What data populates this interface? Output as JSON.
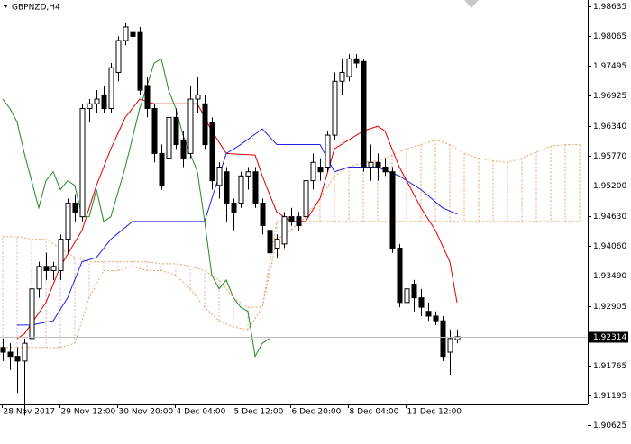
{
  "chart_data": {
    "type": "candlestick",
    "title": "GBPNZD,H4",
    "ylim": [
      1.90625,
      1.98635
    ],
    "yticks": [
      1.98635,
      1.98065,
      1.97495,
      1.96925,
      {
        "value": 1.9634,
        "label": "1.96340"
      },
      {
        "value": 1.9577,
        "label": "1.95770"
      },
      {
        "value": 1.952,
        "label": "1.95200"
      },
      {
        "value": 1.9463,
        "label": "1.94630"
      },
      {
        "value": 1.9406,
        "label": "1.94060"
      },
      {
        "value": 1.9349,
        "label": "1.93490"
      },
      1.92905,
      1.91765,
      1.91195,
      1.90625
    ],
    "xticks": [
      {
        "value": 0,
        "label": "28 Nov 2017"
      },
      {
        "value": 8,
        "label": "29 Nov 12:00"
      },
      {
        "value": 16,
        "label": "30 Nov 20:00"
      },
      {
        "value": 24,
        "label": "4 Dec 04:00"
      },
      {
        "value": 32,
        "label": "5 Dec 12:00"
      },
      {
        "value": 40,
        "label": "6 Dec 20:00"
      },
      {
        "value": 48,
        "label": "8 Dec 04:00"
      },
      {
        "value": 56,
        "label": "11 Dec 12:00"
      }
    ],
    "last_price": 1.92314,
    "up_color": "#ffffff",
    "down_color": "#000000",
    "ohlc": [
      [
        1.9211,
        1.9228,
        1.9185,
        1.9202
      ],
      [
        1.9202,
        1.9219,
        1.9168,
        1.9194
      ],
      [
        1.9194,
        1.9211,
        1.9124,
        1.9185
      ],
      [
        1.9185,
        1.9228,
        1.9081,
        1.9219
      ],
      [
        1.9228,
        1.9332,
        1.9211,
        1.9323
      ],
      [
        1.9323,
        1.9375,
        1.9306,
        1.9366
      ],
      [
        1.9366,
        1.9392,
        1.934,
        1.9358
      ],
      [
        1.9358,
        1.9375,
        1.934,
        1.9366
      ],
      [
        1.9358,
        1.9427,
        1.934,
        1.9418
      ],
      [
        1.9418,
        1.9496,
        1.9392,
        1.9487
      ],
      [
        1.9487,
        1.9504,
        1.9452,
        1.947
      ],
      [
        1.9461,
        1.9677,
        1.9452,
        1.9668
      ],
      [
        1.9668,
        1.9686,
        1.9642,
        1.9677
      ],
      [
        1.9677,
        1.9703,
        1.966,
        1.9686
      ],
      [
        1.9694,
        1.9712,
        1.966,
        1.9668
      ],
      [
        1.9668,
        1.9755,
        1.966,
        1.9746
      ],
      [
        1.9737,
        1.9806,
        1.972,
        1.9798
      ],
      [
        1.9798,
        1.9832,
        1.9789,
        1.9824
      ],
      [
        1.9815,
        1.9832,
        1.9798,
        1.9806
      ],
      [
        1.9815,
        1.9824,
        1.9694,
        1.9703
      ],
      [
        1.9712,
        1.9729,
        1.9651,
        1.9668
      ],
      [
        1.9668,
        1.9677,
        1.9565,
        1.9582
      ],
      [
        1.9582,
        1.9599,
        1.9513,
        1.9521
      ],
      [
        1.9573,
        1.966,
        1.9556,
        1.9651
      ],
      [
        1.9651,
        1.9668,
        1.9591,
        1.9599
      ],
      [
        1.9608,
        1.9625,
        1.9556,
        1.9573
      ],
      [
        1.9582,
        1.9712,
        1.9573,
        1.9686
      ],
      [
        1.9686,
        1.9729,
        1.966,
        1.9694
      ],
      [
        1.9677,
        1.9694,
        1.9591,
        1.9599
      ],
      [
        1.9642,
        1.9651,
        1.9513,
        1.953
      ],
      [
        1.9521,
        1.9565,
        1.9496,
        1.9556
      ],
      [
        1.9547,
        1.9556,
        1.9452,
        1.9487
      ],
      [
        1.9487,
        1.9496,
        1.9435,
        1.947
      ],
      [
        1.9487,
        1.9547,
        1.9478,
        1.9539
      ],
      [
        1.9539,
        1.9556,
        1.9513,
        1.9547
      ],
      [
        1.9547,
        1.9556,
        1.9478,
        1.9487
      ],
      [
        1.9487,
        1.9496,
        1.9427,
        1.9444
      ],
      [
        1.9435,
        1.9444,
        1.9375,
        1.9392
      ],
      [
        1.9401,
        1.9427,
        1.9383,
        1.9418
      ],
      [
        1.9409,
        1.947,
        1.9401,
        1.9461
      ],
      [
        1.9461,
        1.9478,
        1.9444,
        1.9452
      ],
      [
        1.9461,
        1.947,
        1.9435,
        1.9444
      ],
      [
        1.9461,
        1.9539,
        1.9452,
        1.953
      ],
      [
        1.953,
        1.9582,
        1.9513,
        1.9565
      ],
      [
        1.9556,
        1.9573,
        1.953,
        1.9547
      ],
      [
        1.9556,
        1.9625,
        1.9547,
        1.9617
      ],
      [
        1.9617,
        1.9737,
        1.9608,
        1.972
      ],
      [
        1.972,
        1.9763,
        1.9694,
        1.9737
      ],
      [
        1.9729,
        1.9772,
        1.972,
        1.9763
      ],
      [
        1.9763,
        1.9772,
        1.9746,
        1.9755
      ],
      [
        1.9758,
        1.9763,
        1.9547,
        1.9556
      ],
      [
        1.9556,
        1.9599,
        1.953,
        1.9565
      ],
      [
        1.9565,
        1.9582,
        1.953,
        1.9556
      ],
      [
        1.9556,
        1.9573,
        1.9539,
        1.9547
      ],
      [
        1.9547,
        1.9556,
        1.9392,
        1.9401
      ],
      [
        1.9401,
        1.9409,
        1.9288,
        1.9297
      ],
      [
        1.9297,
        1.934,
        1.9288,
        1.9323
      ],
      [
        1.9332,
        1.934,
        1.928,
        1.9306
      ],
      [
        1.9306,
        1.9323,
        1.9271,
        1.9288
      ],
      [
        1.928,
        1.9297,
        1.9262,
        1.9271
      ],
      [
        1.9271,
        1.928,
        1.9254,
        1.9262
      ],
      [
        1.9262,
        1.9271,
        1.9185,
        1.9194
      ],
      [
        1.9202,
        1.9245,
        1.9159,
        1.9228
      ],
      [
        1.9226,
        1.9245,
        1.9219,
        1.92314
      ]
    ],
    "series": [
      {
        "color": "#e00000",
        "x": [
          2,
          3,
          6,
          8,
          11,
          13,
          15,
          17,
          19,
          21,
          27,
          29,
          31,
          35,
          36,
          37,
          38,
          40,
          42,
          44,
          46,
          48,
          50,
          52,
          53,
          55,
          58,
          60,
          62,
          63
        ],
        "values": [
          1.9228,
          1.9237,
          1.9297,
          1.9366,
          1.9435,
          1.9521,
          1.9591,
          1.9651,
          1.9686,
          1.9677,
          1.9677,
          1.9625,
          1.9582,
          1.9579,
          1.9539,
          1.9504,
          1.947,
          1.9452,
          1.9452,
          1.9496,
          1.9591,
          1.9608,
          1.9625,
          1.9634,
          1.9625,
          1.9556,
          1.9478,
          1.9435,
          1.9375,
          1.9297
        ]
      },
      {
        "color": "#2020e0",
        "x": [
          2,
          4,
          7,
          9,
          11,
          13,
          15,
          18,
          28,
          29,
          31,
          33,
          36,
          38,
          44,
          46,
          48,
          52,
          55,
          58,
          61,
          63
        ],
        "values": [
          1.9254,
          1.9254,
          1.9262,
          1.9306,
          1.9375,
          1.9383,
          1.9418,
          1.9452,
          1.9452,
          1.9496,
          1.9582,
          1.9599,
          1.9629,
          1.9599,
          1.9599,
          1.9547,
          1.9556,
          1.9556,
          1.9539,
          1.9513,
          1.9478,
          1.9466
        ]
      },
      {
        "color": "#1e8a1e",
        "x": [
          0,
          1,
          2,
          3,
          5,
          6,
          7,
          8,
          9,
          10,
          11,
          12,
          13,
          14,
          15,
          17,
          19,
          20,
          21,
          22,
          23,
          24,
          25,
          26,
          27,
          28,
          29,
          30,
          31,
          32,
          33,
          34,
          35,
          36,
          37
        ],
        "values": [
          1.9686,
          1.9668,
          1.9642,
          1.9582,
          1.9478,
          1.953,
          1.9547,
          1.9513,
          1.953,
          1.9521,
          1.9461,
          1.9461,
          1.9513,
          1.9452,
          1.9461,
          1.9556,
          1.9668,
          1.9711,
          1.9755,
          1.9763,
          1.9703,
          1.9668,
          1.9617,
          1.9582,
          1.9547,
          1.9452,
          1.9349,
          1.9323,
          1.934,
          1.9306,
          1.9288,
          1.928,
          1.9194,
          1.9219,
          1.9228
        ]
      }
    ],
    "cloud": {
      "color_up": "#f0a060",
      "color_down": "#d8b0c8",
      "x": [
        0,
        2,
        4,
        6,
        8,
        10,
        12,
        14,
        16,
        18,
        20,
        22,
        24,
        26,
        28,
        30,
        32,
        34,
        36,
        38,
        40,
        42,
        44,
        46,
        48,
        50,
        52,
        54,
        56,
        58,
        60,
        62,
        64,
        66,
        68,
        70,
        72,
        74,
        76,
        78,
        80
      ],
      "span_a": [
        1.9211,
        1.9211,
        1.9211,
        1.9211,
        1.9211,
        1.9219,
        1.9306,
        1.9358,
        1.9358,
        1.9366,
        1.9358,
        1.9358,
        1.9349,
        1.9323,
        1.9288,
        1.9262,
        1.925,
        1.9245,
        1.9288,
        1.9418,
        1.9435,
        1.9461,
        1.9496,
        1.9539,
        1.9556,
        1.9565,
        1.9568,
        1.9579,
        1.9591,
        1.9599,
        1.9608,
        1.9599,
        1.9582,
        1.9573,
        1.9568,
        1.9565,
        1.9573,
        1.9585,
        1.9596,
        1.9599,
        1.9599
      ],
      "span_b": [
        1.9423,
        1.9423,
        1.9418,
        1.9418,
        1.9401,
        1.9383,
        1.9375,
        1.9375,
        1.9375,
        1.9375,
        1.9375,
        1.9371,
        1.9371,
        1.9366,
        1.9358,
        1.934,
        1.9306,
        1.9288,
        1.9288,
        1.9452,
        1.9452,
        1.9452,
        1.9452,
        1.9452,
        1.9452,
        1.9452,
        1.9452,
        1.9452,
        1.9452,
        1.9452,
        1.9452,
        1.9452,
        1.9452,
        1.9452,
        1.9452,
        1.9452,
        1.9452,
        1.9452,
        1.9452,
        1.9452,
        1.9452
      ]
    }
  }
}
